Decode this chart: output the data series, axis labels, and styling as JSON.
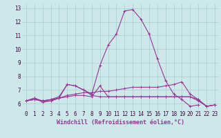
{
  "x": [
    0,
    1,
    2,
    3,
    4,
    5,
    6,
    7,
    8,
    9,
    10,
    11,
    12,
    13,
    14,
    15,
    16,
    17,
    18,
    19,
    20,
    21,
    22,
    23
  ],
  "lines": [
    [
      6.2,
      6.4,
      6.2,
      6.3,
      6.5,
      7.4,
      7.3,
      7.0,
      6.7,
      8.8,
      10.3,
      11.1,
      12.8,
      12.9,
      12.2,
      11.1,
      9.3,
      7.7,
      6.7,
      6.3,
      5.8,
      5.9,
      null,
      null
    ],
    [
      6.2,
      6.4,
      6.1,
      6.2,
      6.4,
      6.5,
      6.6,
      6.6,
      6.5,
      7.3,
      6.5,
      6.5,
      6.5,
      6.5,
      6.5,
      6.5,
      6.5,
      6.5,
      6.5,
      6.5,
      6.5,
      6.2,
      5.8,
      5.9
    ],
    [
      6.2,
      6.3,
      6.2,
      6.2,
      6.4,
      6.6,
      6.7,
      6.8,
      6.8,
      6.9,
      6.9,
      7.0,
      7.1,
      7.2,
      7.2,
      7.2,
      7.2,
      7.3,
      7.4,
      7.6,
      6.7,
      6.3,
      5.8,
      5.9
    ],
    [
      6.2,
      6.3,
      6.2,
      6.3,
      6.4,
      7.4,
      7.3,
      7.0,
      6.6,
      6.5,
      6.5,
      6.5,
      6.5,
      6.5,
      6.5,
      6.5,
      6.5,
      6.5,
      6.5,
      6.5,
      6.5,
      6.3,
      5.8,
      5.9
    ]
  ],
  "line_color": "#993399",
  "bg_color": "#cce8e8",
  "grid_color": "#aacccc",
  "xlabel": "Windchill (Refroidissement éolien,°C)",
  "xlabel_fontsize": 6.0,
  "xlim": [
    -0.5,
    23.5
  ],
  "ylim": [
    5.5,
    13.3
  ],
  "yticks": [
    6,
    7,
    8,
    9,
    10,
    11,
    12,
    13
  ],
  "xticks": [
    0,
    1,
    2,
    3,
    4,
    5,
    6,
    7,
    8,
    9,
    10,
    11,
    12,
    13,
    14,
    15,
    16,
    17,
    18,
    19,
    20,
    21,
    22,
    23
  ],
  "tick_fontsize": 5.5,
  "marker": "+",
  "markersize": 3,
  "linewidth": 0.8
}
